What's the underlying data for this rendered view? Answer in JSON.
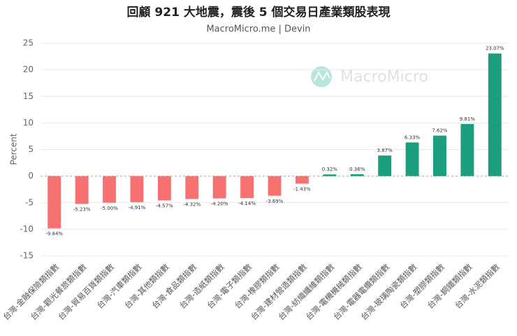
{
  "chart_data": {
    "type": "bar",
    "title": "回顧 921 大地震，震後 5 個交易日產業類股表現",
    "subtitle": "MacroMicro.me | Devin",
    "watermark": "MacroMicro",
    "y_label": "Percent",
    "categories": [
      "台灣-金融保險類指數",
      "台灣-觀光餐旅類指數",
      "台灣-貿易百貨類指數",
      "台灣-汽車類指數",
      "台灣-其他類指數",
      "台灣-食品類指數",
      "台灣-造紙類指數",
      "台灣-電子類指數",
      "台灣-橡膠類指數",
      "台灣-建材營造類指數",
      "台灣-紡織纖維類指數",
      "台灣-電機機械類指數",
      "台灣-電器電纜類指數",
      "台灣-玻璃陶瓷類指數",
      "台灣-塑膠類指數",
      "台灣-鋼鐵類指數",
      "台灣-水泥類指數"
    ],
    "values": [
      -9.84,
      -5.23,
      -5.0,
      -4.91,
      -4.57,
      -4.32,
      -4.2,
      -4.14,
      -3.69,
      -1.43,
      0.32,
      0.36,
      3.87,
      6.33,
      7.62,
      9.81,
      23.07
    ],
    "value_labels": [
      "-9.84%",
      "-5.23%",
      "-5.00%",
      "-4.91%",
      "-4.57%",
      "-4.32%",
      "-4.20%",
      "-4.14%",
      "-3.69%",
      "-1.43%",
      "0.32%",
      "0.36%",
      "3.87%",
      "6.33%",
      "7.62%",
      "9.81%",
      "23.07%"
    ],
    "positive_color": "#1a9e7e",
    "negative_color": "#f87171",
    "ylim": [
      -15,
      25
    ],
    "yticks": [
      -15,
      -10,
      -5,
      0,
      5,
      10,
      15,
      20,
      25
    ],
    "grid": true
  }
}
